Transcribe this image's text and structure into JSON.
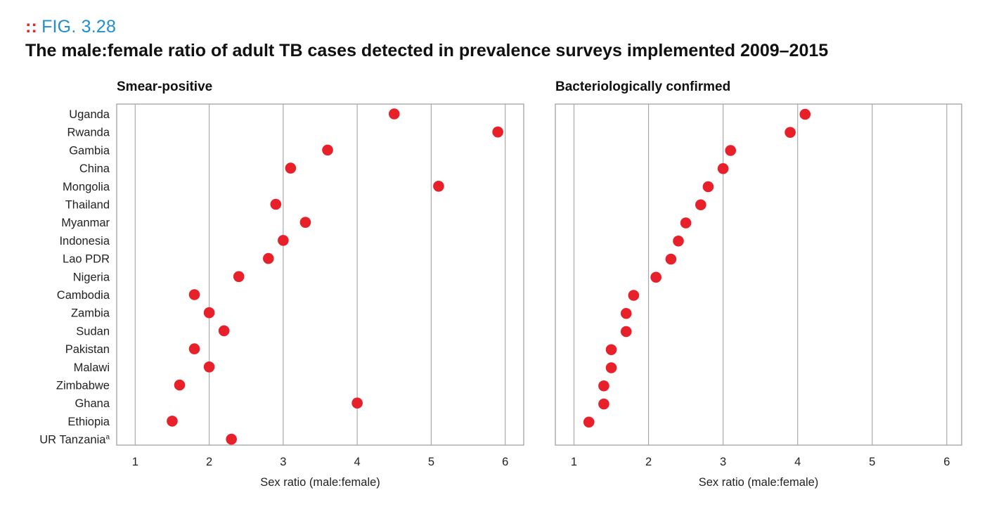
{
  "figure": {
    "label": "FIG. 3.28",
    "title": "The male:female ratio of adult TB cases detected in prevalence surveys implemented 2009–2015"
  },
  "colors": {
    "dot": "#e8202a",
    "grid": "#aaaaaa",
    "frame": "#999999",
    "fig_label": "#1f8fd0"
  },
  "chart_data": [
    {
      "type": "scatter",
      "title": "Smear-positive",
      "xlabel": "Sex ratio (male:female)",
      "ylabel": "",
      "xlim": [
        0.75,
        6.25
      ],
      "xticks": [
        1,
        2,
        3,
        4,
        5,
        6
      ],
      "grid": true,
      "categories": [
        "Uganda",
        "Rwanda",
        "Gambia",
        "China",
        "Mongolia",
        "Thailand",
        "Myanmar",
        "Indonesia",
        "Lao PDR",
        "Nigeria",
        "Cambodia",
        "Zambia",
        "Sudan",
        "Pakistan",
        "Malawi",
        "Zimbabwe",
        "Ghana",
        "Ethiopia",
        "UR Tanzania"
      ],
      "category_superscripts": {
        "UR Tanzania": "a"
      },
      "values": [
        4.5,
        5.9,
        3.6,
        3.1,
        5.1,
        2.9,
        3.3,
        3.0,
        2.8,
        2.4,
        1.8,
        2.0,
        2.2,
        1.8,
        2.0,
        1.6,
        4.0,
        1.5,
        2.3
      ]
    },
    {
      "type": "scatter",
      "title": "Bacteriologically confirmed",
      "xlabel": "Sex ratio (male:female)",
      "ylabel": "",
      "xlim": [
        0.75,
        6.2
      ],
      "xticks": [
        1,
        2,
        3,
        4,
        5,
        6
      ],
      "grid": true,
      "values": [
        4.1,
        3.9,
        3.1,
        3.0,
        2.8,
        2.7,
        2.5,
        2.4,
        2.3,
        2.1,
        1.8,
        1.7,
        1.7,
        1.5,
        1.5,
        1.4,
        1.4,
        1.2
      ]
    }
  ]
}
